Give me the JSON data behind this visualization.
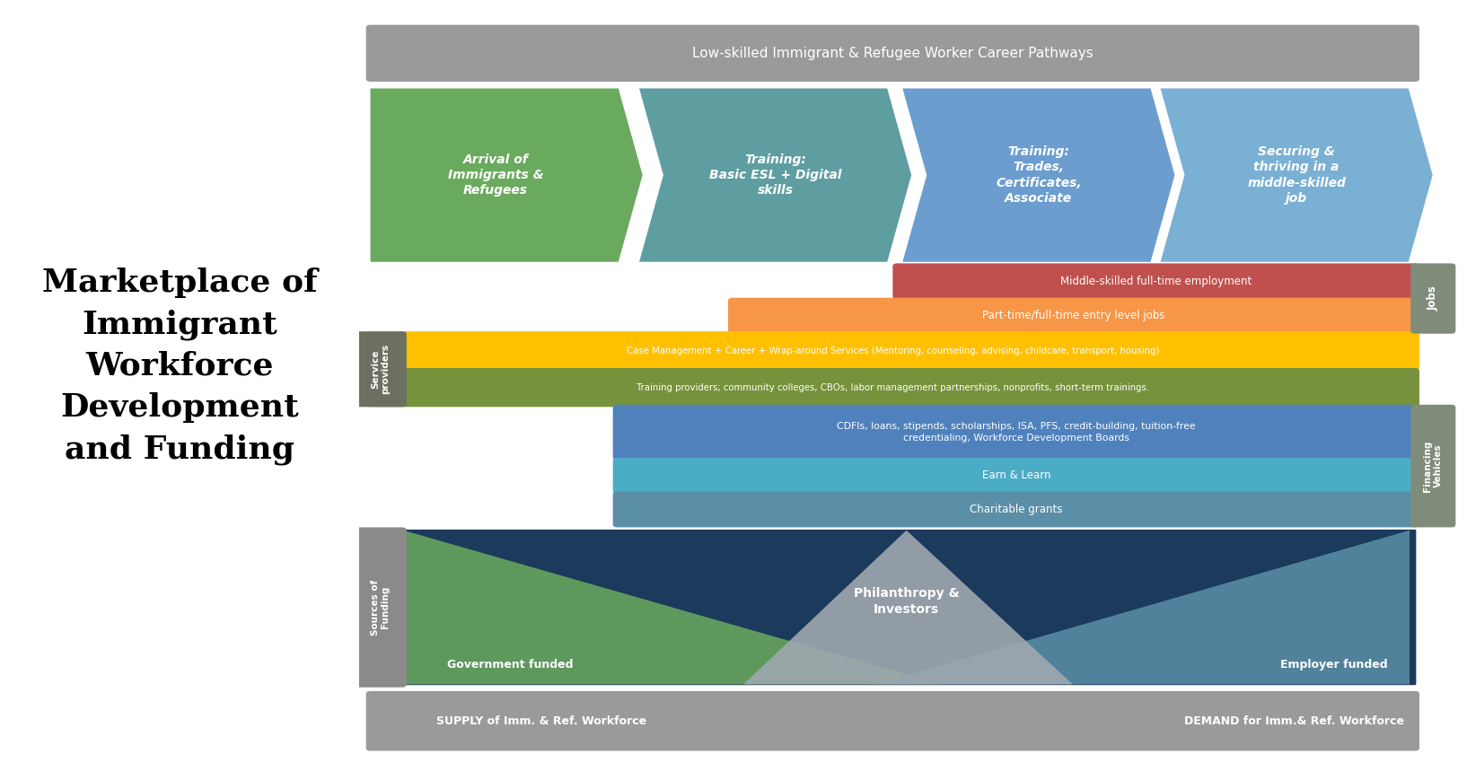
{
  "bg_color": "#1b3a5c",
  "title_text": "Marketplace of\nImmigrant\nWorkforce\nDevelopment\nand Funding",
  "title_color": "#000000",
  "top_banner_text": "Low-skilled Immigrant & Refugee Worker Career Pathways",
  "top_banner_color": "#9a9a9a",
  "arrows": [
    {
      "text": "Arrival of\nImmigrants &\nRefugees",
      "color": "#6aaa5e"
    },
    {
      "text": "Training:\nBasic ESL + Digital\nskills",
      "color": "#5f9ea0"
    },
    {
      "text": "Training:\nTrades,\nCertificates,\nAssociate",
      "color": "#6b9dcf"
    },
    {
      "text": "Securing &\nthriving in a\nmiddle-skilled\njob",
      "color": "#7ab0d4"
    }
  ],
  "jobs_bar1_text": "Middle-skilled full-time employment",
  "jobs_bar1_color": "#c0504d",
  "jobs_bar2_text": "Part-time/full-time entry level jobs",
  "jobs_bar2_color": "#f79646",
  "jobs_label": "Jobs",
  "jobs_side_color": "#7f8c7a",
  "service_bar1_text": "Case Management + Career + Wrap-around Services (Mentoring, counseling, advising, childcare, transport, housing)",
  "service_bar1_color": "#ffc000",
  "service_bar2_text": "Training providers; community colleges, CBOs, labor management partnerships, nonprofits, short-term trainings.",
  "service_bar2_color": "#76923c",
  "service_label": "Service\nproviders",
  "service_side_color": "#6b7060",
  "finance_bar1_text": "CDFIs, loans, stipends, scholarships, ISA, PFS, credit-building, tuition-free\ncredentialing, Workforce Development Boards",
  "finance_bar1_color": "#4f81bd",
  "finance_bar2_text": "Earn & Learn",
  "finance_bar2_color": "#4bacc6",
  "finance_bar3_text": "Charitable grants",
  "finance_bar3_color": "#5b8fa8",
  "finance_label": "Financing\nVehicles",
  "finance_side_color": "#7f8c7a",
  "fund_green_color": "#6aaa5e",
  "fund_blue_color": "#5b8fa8",
  "fund_gray_color": "#a0a8b0",
  "fund_label": "Sources of\nFunding",
  "fund_side_color": "#8a8a8a",
  "fund_gov_text": "Government funded",
  "fund_emp_text": "Employer funded",
  "fund_phil_text": "Philanthropy &\nInvestors",
  "supply_text": "SUPPLY of Imm. & Ref. Workforce",
  "demand_text": "DEMAND for Imm.& Ref. Workforce",
  "bottom_banner_color": "#9a9a9a"
}
